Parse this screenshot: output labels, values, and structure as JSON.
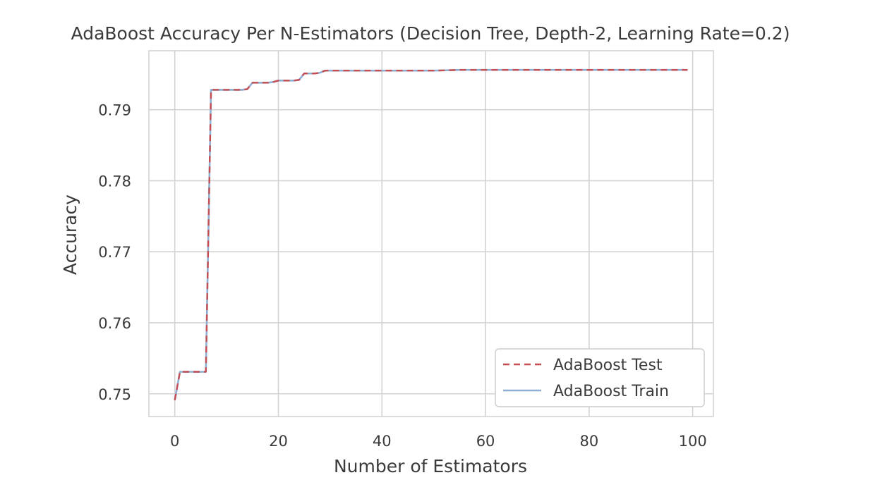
{
  "chart_data": {
    "type": "line",
    "title": "AdaBoost Accuracy Per N-Estimators (Decision Tree, Depth-2, Learning Rate=0.2)",
    "xlabel": "Number of Estimators",
    "ylabel": "Accuracy",
    "xlim": [
      -5,
      104
    ],
    "ylim": [
      0.7468,
      0.7983
    ],
    "xticks": [
      0,
      20,
      40,
      60,
      80,
      100
    ],
    "xtick_labels": [
      "0",
      "20",
      "40",
      "60",
      "80",
      "100"
    ],
    "yticks": [
      0.75,
      0.76,
      0.77,
      0.78,
      0.79
    ],
    "ytick_labels": [
      "0.75",
      "0.76",
      "0.77",
      "0.78",
      "0.79"
    ],
    "grid": true,
    "legend": "lower-right",
    "series": [
      {
        "name": "AdaBoost Test",
        "color": "#c44e52",
        "style": "dashed",
        "x": [
          0,
          1,
          2,
          3,
          4,
          5,
          6,
          7,
          8,
          9,
          10,
          11,
          12,
          13,
          14,
          15,
          16,
          17,
          18,
          19,
          20,
          21,
          22,
          23,
          24,
          25,
          26,
          27,
          28,
          29,
          30,
          40,
          50,
          55,
          60,
          70,
          80,
          90,
          99
        ],
        "values": [
          0.7491,
          0.7531,
          0.7531,
          0.7531,
          0.7531,
          0.7531,
          0.7531,
          0.7928,
          0.7928,
          0.7928,
          0.7928,
          0.7928,
          0.7928,
          0.7928,
          0.7929,
          0.7938,
          0.7938,
          0.7938,
          0.7938,
          0.7939,
          0.7941,
          0.7941,
          0.7941,
          0.7941,
          0.7942,
          0.7951,
          0.7951,
          0.7951,
          0.7952,
          0.7955,
          0.7955,
          0.7955,
          0.7955,
          0.7956,
          0.7956,
          0.7956,
          0.7956,
          0.7956,
          0.7956
        ]
      },
      {
        "name": "AdaBoost Train",
        "color": "#8faed4",
        "style": "solid",
        "x": [
          0,
          1,
          2,
          3,
          4,
          5,
          6,
          7,
          8,
          9,
          10,
          11,
          12,
          13,
          14,
          15,
          16,
          17,
          18,
          19,
          20,
          21,
          22,
          23,
          24,
          25,
          26,
          27,
          28,
          29,
          30,
          40,
          50,
          55,
          60,
          70,
          80,
          90,
          99
        ],
        "values": [
          0.7491,
          0.7531,
          0.7531,
          0.7531,
          0.7531,
          0.7531,
          0.7531,
          0.7928,
          0.7928,
          0.7928,
          0.7928,
          0.7928,
          0.7928,
          0.7928,
          0.7929,
          0.7938,
          0.7938,
          0.7938,
          0.7938,
          0.7939,
          0.7941,
          0.7941,
          0.7941,
          0.7941,
          0.7942,
          0.7951,
          0.7951,
          0.7951,
          0.7952,
          0.7955,
          0.7955,
          0.7955,
          0.7955,
          0.7956,
          0.7956,
          0.7956,
          0.7956,
          0.7956,
          0.7956
        ]
      }
    ]
  }
}
